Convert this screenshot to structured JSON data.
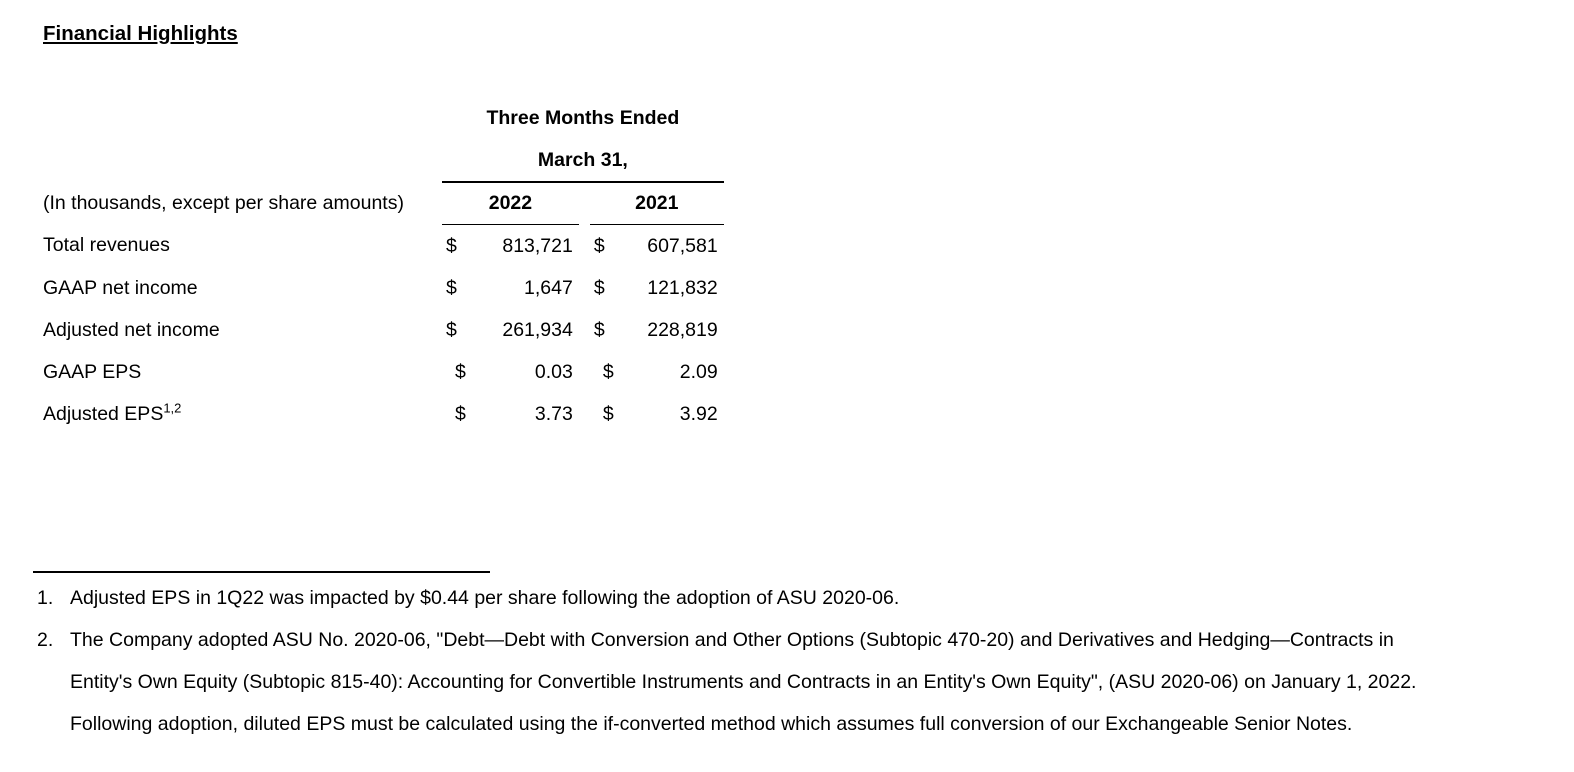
{
  "page": {
    "title": "Financial Highlights"
  },
  "table": {
    "period_header_line1": "Three Months Ended",
    "period_header_line2": "March 31,",
    "units_note": "(In thousands, except per share amounts)",
    "columns": [
      "2022",
      "2021"
    ],
    "currency_symbol": "$",
    "rows": [
      {
        "label": "Total revenues",
        "values": [
          "813,721",
          "607,581"
        ]
      },
      {
        "label": "GAAP net income",
        "values": [
          "1,647",
          "121,832"
        ]
      },
      {
        "label": "Adjusted net income",
        "values": [
          "261,934",
          "228,819"
        ]
      },
      {
        "label": "GAAP EPS",
        "values": [
          "0.03",
          "2.09"
        ]
      },
      {
        "label": "Adjusted EPS",
        "superscript": "1,2",
        "values": [
          "3.73",
          "3.92"
        ]
      }
    ]
  },
  "footnotes": [
    {
      "number": "1.",
      "lines": [
        "Adjusted EPS in 1Q22 was impacted by $0.44 per share following the adoption of ASU 2020-06."
      ]
    },
    {
      "number": "2.",
      "lines": [
        "The Company adopted ASU No. 2020-06, \"Debt—Debt with Conversion and Other Options (Subtopic 470-20) and Derivatives and Hedging—Contracts in",
        "Entity's Own Equity (Subtopic 815-40): Accounting for Convertible Instruments and Contracts in an Entity's Own Equity\", (ASU 2020-06) on January 1, 2022.",
        "Following adoption, diluted EPS must be calculated using the if-converted method which assumes full conversion of our Exchangeable Senior Notes."
      ]
    }
  ]
}
